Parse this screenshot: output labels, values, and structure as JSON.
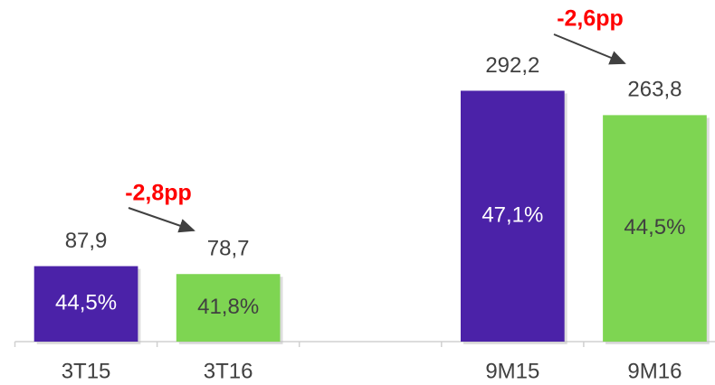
{
  "chart_data": {
    "type": "bar",
    "categories": [
      "3T15",
      "3T16",
      null,
      "9M15",
      "9M16"
    ],
    "values": [
      87.9,
      78.7,
      null,
      292.2,
      263.8
    ],
    "value_labels": [
      "87,9",
      "78,7",
      null,
      "292,2",
      "263,8"
    ],
    "inner_labels": [
      "44,5%",
      "41,8%",
      null,
      "47,1%",
      "44,5%"
    ],
    "colors": [
      "#4b22a8",
      "#7ed552",
      null,
      "#4b22a8",
      "#7ed552"
    ],
    "ylim": [
      0,
      300
    ],
    "annotations": [
      "-2,8pp",
      "-2,6pp"
    ]
  }
}
